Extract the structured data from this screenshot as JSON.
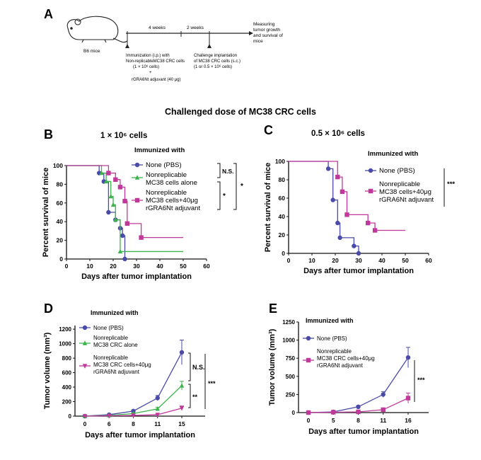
{
  "colors": {
    "none": "#4a4aa8",
    "alone": "#3cb44b",
    "adjuvant": "#c0399a",
    "axis": "#111111"
  },
  "panelA": {
    "letter": "A",
    "mouse_label": "B6 mice",
    "interval1": "4 weeks",
    "interval2": "2 weeks",
    "end_label": [
      "Measuring",
      "tumor growth",
      "and survival of",
      "mice"
    ],
    "immunization_label": [
      "Immunization (i.p.) with",
      "Non-replicableMC38 CRC cells",
      "(1 × 10⁶ cells)",
      "+",
      "rGRA6Nt adjuvant (40 μg)"
    ],
    "challenge_label": [
      "Challenge implantation",
      "of MC38 CRC cells (s.c.)",
      "(1 or 0.5 × 10⁶ cells)"
    ]
  },
  "section_title": "Challenged dose of MC38 CRC cells",
  "panelB": {
    "letter": "B",
    "title": "1 × 10⁶ cells"
  },
  "panelC": {
    "letter": "C",
    "title": "0.5 × 10⁶ cells"
  },
  "panelD": {
    "letter": "D"
  },
  "panelE": {
    "letter": "E"
  },
  "chart_data": [
    {
      "id": "B",
      "type": "line",
      "step": true,
      "xlabel": "Days after tumor implantation",
      "ylabel": "Percent survival of mice",
      "xlim": [
        0,
        60
      ],
      "ylim": [
        0,
        100
      ],
      "xticks": [
        0,
        10,
        20,
        30,
        40,
        50,
        60
      ],
      "yticks": [
        0,
        20,
        40,
        60,
        80,
        100
      ],
      "legend_title": "Immunized with",
      "series": [
        {
          "name": "None (PBS)",
          "color": "#4a4aa8",
          "marker": "circle",
          "x": [
            0,
            14,
            16,
            18,
            21,
            23,
            24,
            25
          ],
          "y": [
            100,
            92,
            83,
            50,
            42,
            33,
            25,
            0
          ]
        },
        {
          "name": "Nonreplicable MC38 cells alone",
          "color": "#3cb44b",
          "marker": "triangle",
          "x": [
            0,
            15,
            17,
            19,
            20,
            21,
            23,
            50
          ],
          "y": [
            100,
            92,
            83,
            67,
            58,
            42,
            8,
            8
          ]
        },
        {
          "name": "Nonreplicable MC38 cells+40μg rGRA6Nt adjuvant",
          "color": "#c0399a",
          "marker": "square",
          "x": [
            0,
            18,
            21,
            23,
            25,
            26,
            32,
            50
          ],
          "y": [
            100,
            92,
            85,
            77,
            62,
            38,
            23,
            23
          ]
        }
      ],
      "annotations": [
        "N.S.",
        "*",
        "*"
      ]
    },
    {
      "id": "C",
      "type": "line",
      "step": true,
      "xlabel": "Days after tumor implantation",
      "ylabel": "Percent survival of mice",
      "xlim": [
        0,
        60
      ],
      "ylim": [
        0,
        100
      ],
      "xticks": [
        0,
        10,
        20,
        30,
        40,
        50,
        60
      ],
      "yticks": [
        0,
        20,
        40,
        60,
        80,
        100
      ],
      "legend_title": "Immunized with",
      "series": [
        {
          "name": "None (PBS)",
          "color": "#4a4aa8",
          "marker": "circle",
          "x": [
            0,
            17,
            19,
            21,
            22,
            28,
            30
          ],
          "y": [
            100,
            92,
            58,
            33,
            17,
            8,
            0
          ]
        },
        {
          "name": "Nonreplicable MC38 cells+40μg rGRA6Nt adjuvant",
          "color": "#c0399a",
          "marker": "square",
          "x": [
            0,
            21,
            23,
            25,
            34,
            37,
            50
          ],
          "y": [
            100,
            83,
            67,
            42,
            33,
            25,
            25
          ]
        }
      ],
      "annotations": [
        "***"
      ]
    },
    {
      "id": "D",
      "type": "line",
      "xlabel": "Days after tumor implantation",
      "ylabel": "Tumor volume (mm³)",
      "categories": [
        "0",
        "6",
        "8",
        "11",
        "15"
      ],
      "ylim": [
        0,
        1250
      ],
      "yticks": [
        0,
        200,
        400,
        600,
        800,
        1000,
        1200
      ],
      "legend_title": "Immunized with",
      "series": [
        {
          "name": "None (PBS)",
          "color": "#4a4aa8",
          "marker": "circle",
          "values": [
            0,
            20,
            70,
            250,
            880
          ],
          "err": [
            0,
            5,
            15,
            35,
            170
          ]
        },
        {
          "name": "Nonreplicable MC38 CRC alone",
          "color": "#3cb44b",
          "marker": "triangle",
          "values": [
            0,
            10,
            35,
            100,
            420
          ],
          "err": [
            0,
            3,
            8,
            20,
            60
          ]
        },
        {
          "name": "Nonreplicable MC38 CRC cells+40μg rGRA6Nt adjuvant",
          "color": "#c0399a",
          "marker": "triangle-down",
          "values": [
            0,
            5,
            10,
            20,
            110
          ],
          "err": [
            0,
            2,
            4,
            8,
            30
          ]
        }
      ],
      "annotations": [
        "N.S.",
        "**",
        "***"
      ]
    },
    {
      "id": "E",
      "type": "line",
      "xlabel": "Days after tumor implantation",
      "ylabel": "Tumor volume (mm³)",
      "categories": [
        "0",
        "5",
        "8",
        "11",
        "16"
      ],
      "ylim": [
        0,
        1250
      ],
      "yticks": [
        0,
        250,
        500,
        750,
        1000,
        1250
      ],
      "legend_title": "Immunized with",
      "series": [
        {
          "name": "None (PBS)",
          "color": "#4a4aa8",
          "marker": "circle",
          "values": [
            0,
            10,
            80,
            250,
            760
          ],
          "err": [
            0,
            5,
            15,
            40,
            140
          ]
        },
        {
          "name": "Nonreplicable MC38 CRC cells+40μg rGRA6Nt adjuvant",
          "color": "#c0399a",
          "marker": "square",
          "values": [
            0,
            5,
            10,
            40,
            200
          ],
          "err": [
            0,
            2,
            4,
            10,
            70
          ]
        }
      ],
      "annotations": [
        "***"
      ]
    }
  ]
}
